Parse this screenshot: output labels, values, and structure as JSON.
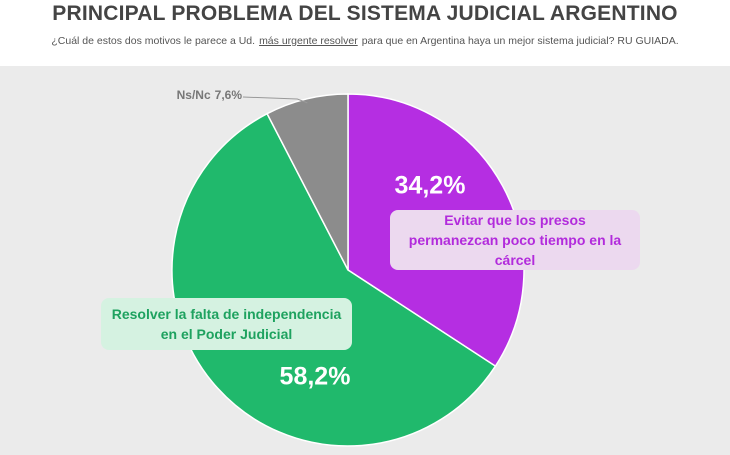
{
  "chart_data": {
    "type": "pie",
    "title": "PRINCIPAL PROBLEMA DEL SISTEMA JUDICIAL ARGENTINO",
    "subtitle": [
      "¿Cuál de estos dos motivos le parece a Ud.",
      "más urgente resolver",
      "para que en Argentina haya un mejor sistema judicial? RU GUIADA."
    ],
    "categories": [
      "Evitar que los presos permanezcan poco tiempo en la cárcel",
      "Resolver la falta de independencia en el Poder Judicial",
      "Ns/Nc"
    ],
    "values": [
      34.2,
      58.2,
      7.6
    ],
    "value_labels": [
      "34,2%",
      "58,2%",
      "7,6%"
    ],
    "colors": [
      "#b52ee2",
      "#20b96c",
      "#8c8c8c"
    ]
  }
}
